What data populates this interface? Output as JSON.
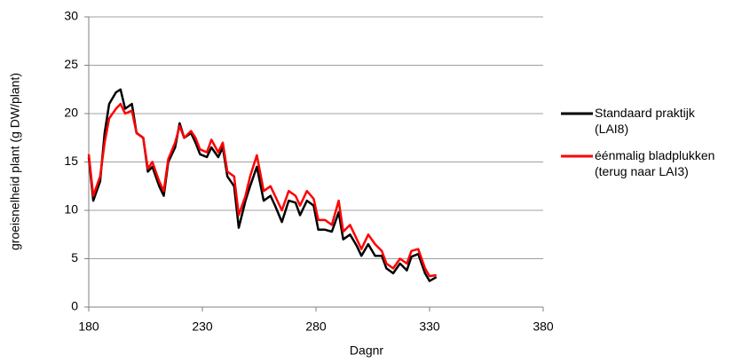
{
  "chart_data": {
    "type": "line",
    "x_label": "Dagnr",
    "y_label": "groeisnelheid plant (g DW/plant)",
    "x": [
      180,
      182,
      185,
      187,
      189,
      192,
      194,
      196,
      199,
      201,
      204,
      206,
      208,
      211,
      213,
      215,
      218,
      220,
      222,
      225,
      227,
      229,
      232,
      234,
      237,
      239,
      241,
      244,
      246,
      249,
      251,
      254,
      257,
      260,
      262,
      265,
      268,
      271,
      273,
      276,
      279,
      281,
      284,
      287,
      290,
      292,
      295,
      298,
      300,
      303,
      306,
      309,
      311,
      314,
      317,
      320,
      322,
      325,
      328,
      330,
      333
    ],
    "series": [
      {
        "name": "Standaard praktijk (LAI8)",
        "color": "#000000",
        "values": [
          15.5,
          11,
          13,
          18,
          21,
          22.2,
          22.5,
          20.5,
          21,
          18,
          17.5,
          14,
          14.5,
          12.5,
          11.5,
          15,
          16.5,
          19,
          17.5,
          18,
          17,
          15.8,
          15.5,
          16.5,
          15.5,
          16.5,
          13.5,
          12.5,
          8.2,
          11,
          12.5,
          14.5,
          11,
          11.5,
          10.5,
          8.8,
          11,
          10.8,
          9.5,
          11,
          10.5,
          8,
          8,
          7.8,
          9.8,
          7,
          7.5,
          6.3,
          5.3,
          6.5,
          5.3,
          5.3,
          4,
          3.5,
          4.5,
          3.8,
          5.2,
          5.5,
          3.5,
          2.7,
          3.1
        ]
      },
      {
        "name": "éénmalig bladplukken (terug naar LAI3)",
        "color": "#ff0000",
        "values": [
          15.8,
          11.5,
          13.5,
          17,
          19.5,
          20.5,
          21,
          20,
          20.3,
          18,
          17.5,
          14.3,
          15,
          13,
          12,
          15.3,
          17,
          18.7,
          17.5,
          18.2,
          17.5,
          16.3,
          16,
          17.3,
          16,
          17,
          14,
          13.5,
          9.5,
          11.5,
          13.5,
          15.7,
          12,
          12.5,
          11.5,
          10,
          12,
          11.5,
          10.5,
          12,
          11.2,
          9,
          9,
          8.5,
          11,
          7.8,
          8.5,
          7,
          6,
          7.5,
          6.5,
          5.8,
          4.5,
          4,
          5,
          4.5,
          5.8,
          6,
          4,
          3.2,
          3.3
        ]
      }
    ],
    "xlim": [
      180,
      380
    ],
    "xticks": [
      180,
      230,
      280,
      330,
      380
    ],
    "ylim": [
      0,
      30
    ],
    "yticks": [
      0,
      5,
      10,
      15,
      20,
      25,
      30
    ],
    "grid": true,
    "legend": "right"
  }
}
